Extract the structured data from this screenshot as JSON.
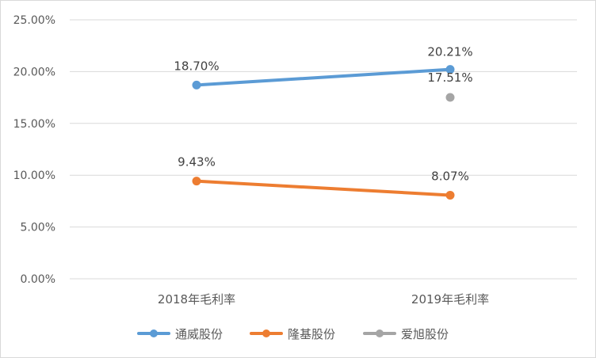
{
  "chart_data": {
    "type": "line",
    "title": "",
    "xlabel": "",
    "ylabel": "",
    "categories": [
      "2018年毛利率",
      "2019年毛利率"
    ],
    "series": [
      {
        "name": "通威股份",
        "color": "#5B9BD5",
        "values": [
          18.7,
          20.21
        ],
        "labels": [
          "18.70%",
          "20.21%"
        ]
      },
      {
        "name": "隆基股份",
        "color": "#ED7D31",
        "values": [
          9.43,
          8.07
        ],
        "labels": [
          "9.43%",
          "8.07%"
        ]
      },
      {
        "name": "爱旭股份",
        "color": "#A5A5A5",
        "values": [
          null,
          17.51
        ],
        "labels": [
          "",
          "17.51%"
        ]
      }
    ],
    "ylim": [
      0,
      25
    ],
    "yticks": [
      0,
      5,
      10,
      15,
      20,
      25
    ],
    "ytick_labels": [
      "0.00%",
      "5.00%",
      "10.00%",
      "15.00%",
      "20.00%",
      "25.00%"
    ],
    "grid": true,
    "legend_position": "bottom"
  }
}
